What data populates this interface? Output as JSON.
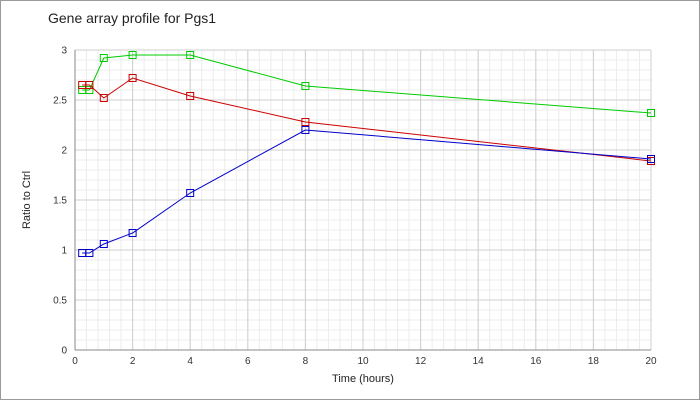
{
  "chart_data": {
    "type": "line",
    "title": "Gene array profile for Pgs1",
    "xlabel": "Time (hours)",
    "ylabel": "Ratio to Ctrl",
    "xlim": [
      0,
      20
    ],
    "ylim": [
      0,
      3
    ],
    "x_ticks": [
      0,
      2,
      4,
      6,
      8,
      10,
      12,
      14,
      16,
      18,
      20
    ],
    "y_ticks": [
      0,
      0.5,
      1,
      1.5,
      2,
      2.5,
      3
    ],
    "x_tick_labels": [
      "0",
      "2",
      "4",
      "6",
      "8",
      "10",
      "12",
      "14",
      "16",
      "18",
      "20"
    ],
    "y_tick_labels": [
      "0",
      "0.5",
      "1",
      "1.5",
      "2",
      "2.5",
      "3"
    ],
    "grid": true,
    "legend": "none",
    "marker": "square",
    "series": [
      {
        "color": "#00cc00",
        "x": [
          0.25,
          0.5,
          1,
          2,
          4,
          8,
          20
        ],
        "y": [
          2.6,
          2.6,
          2.92,
          2.95,
          2.95,
          2.64,
          2.37
        ]
      },
      {
        "color": "#cc0000",
        "x": [
          0.25,
          0.5,
          1,
          2,
          4,
          8,
          20
        ],
        "y": [
          2.65,
          2.65,
          2.52,
          2.72,
          2.54,
          2.28,
          1.89
        ]
      },
      {
        "color": "#0000cc",
        "x": [
          0.25,
          0.5,
          1,
          2,
          4,
          8,
          20
        ],
        "y": [
          0.97,
          0.97,
          1.06,
          1.17,
          1.57,
          2.2,
          1.91
        ]
      }
    ]
  }
}
